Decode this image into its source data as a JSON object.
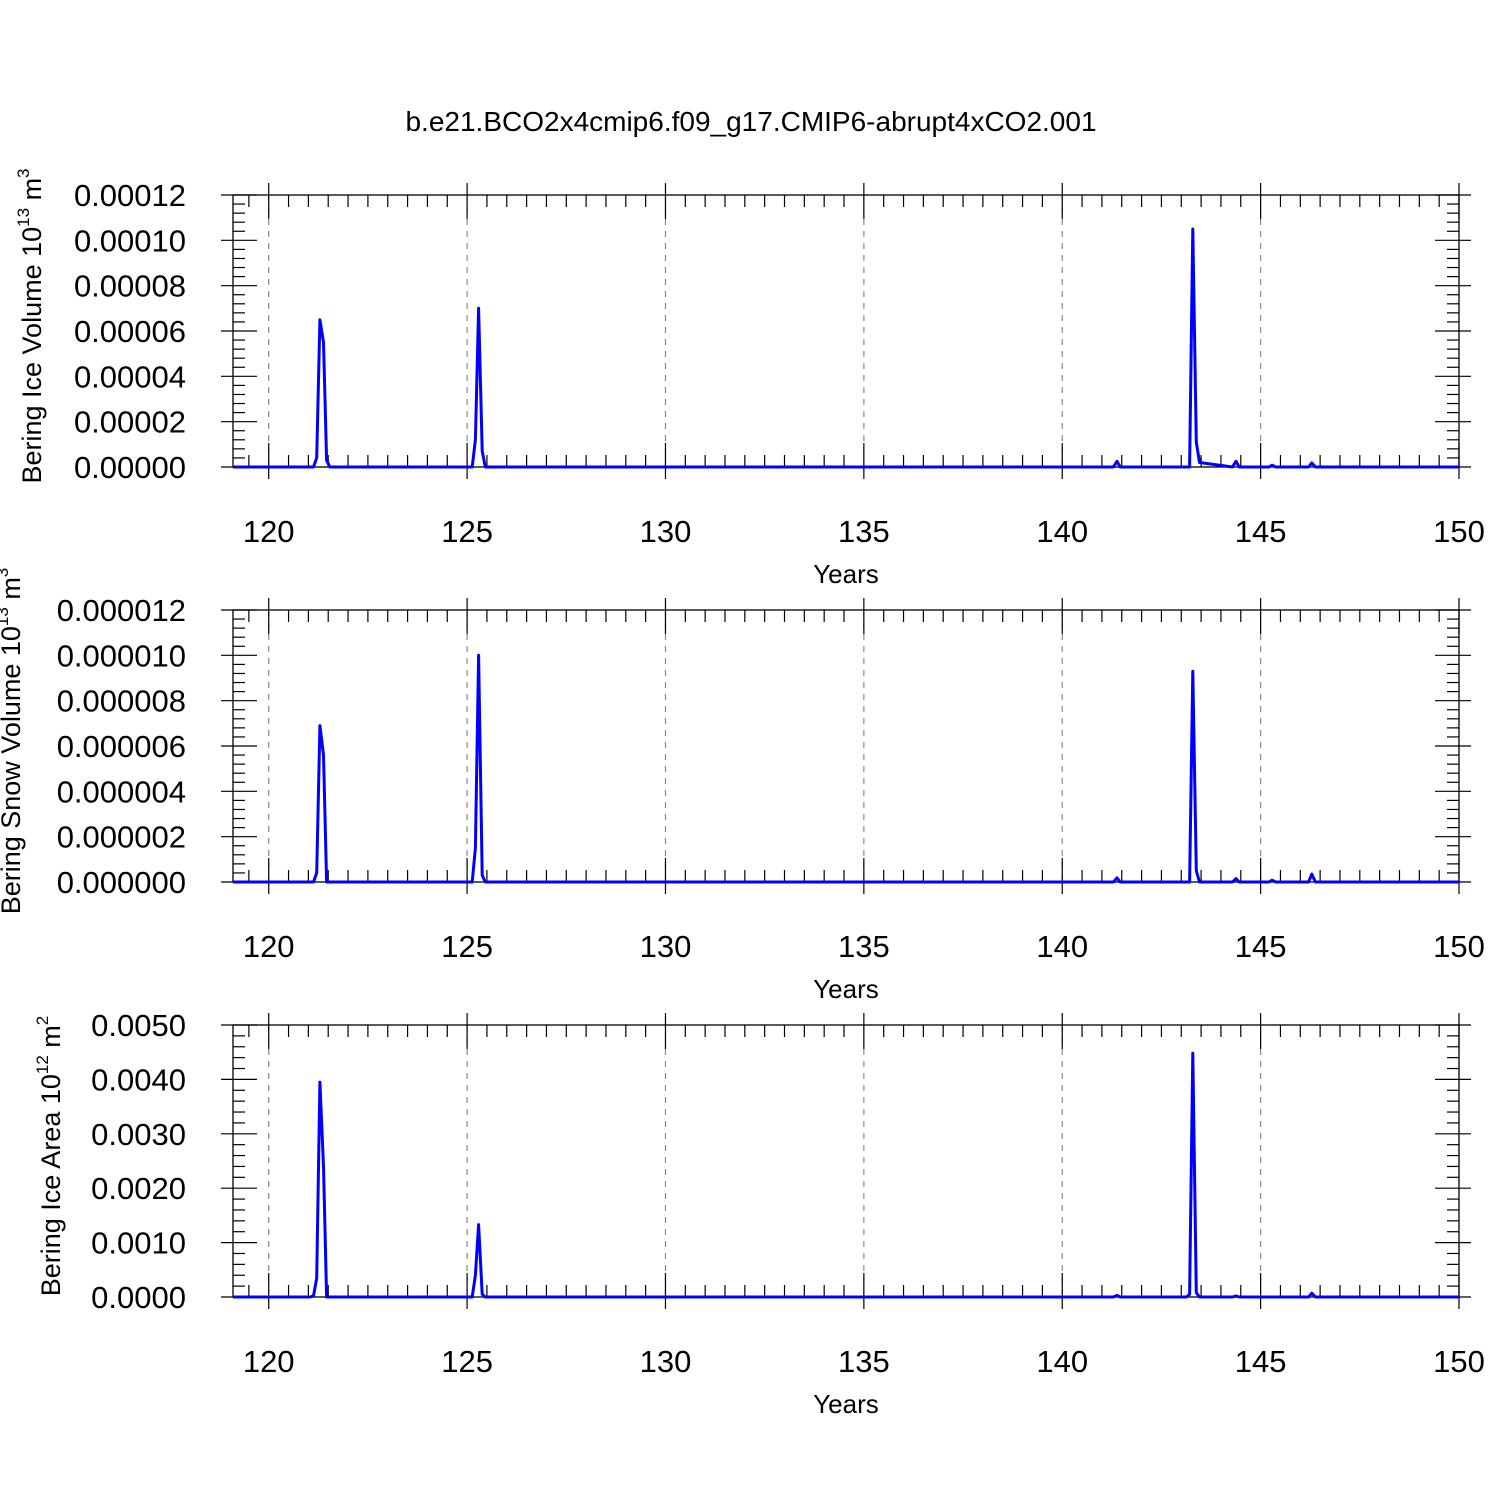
{
  "figure": {
    "title": "b.e21.BCO2x4cmip6.f09_g17.CMIP6-abrupt4xCO2.001"
  },
  "chart_data": [
    {
      "type": "line",
      "ylabel_main": "Bering Ice Volume 10",
      "ylabel_exp": "13",
      "ylabel_unit": " m",
      "ylabel_unit_exp": "3",
      "xlabel": "Years",
      "xlim": [
        119.1,
        150
      ],
      "ylim": [
        0,
        0.00012
      ],
      "x_ticks": [
        120,
        125,
        130,
        135,
        140,
        145,
        150
      ],
      "x_tick_labels": [
        "120",
        "125",
        "130",
        "135",
        "140",
        "145",
        "150"
      ],
      "y_ticks": [
        0,
        2e-05,
        4e-05,
        6e-05,
        8e-05,
        0.0001,
        0.00012
      ],
      "y_tick_labels": [
        "0.00000",
        "0.00002",
        "0.00004",
        "0.00006",
        "0.00008",
        "0.00010",
        "0.00012"
      ],
      "grid": "vertical dashed",
      "series": [
        {
          "color": "#0000ff",
          "x": [
            119.1,
            121.13,
            121.21,
            121.29,
            121.38,
            121.46,
            121.54,
            125.13,
            125.21,
            125.29,
            125.38,
            125.46,
            141.29,
            141.38,
            141.46,
            143.13,
            143.21,
            143.29,
            143.38,
            143.46,
            144.29,
            144.38,
            144.46,
            145.21,
            145.29,
            145.38,
            146.21,
            146.29,
            146.38,
            150
          ],
          "y": [
            0,
            0,
            4e-06,
            6.5e-05,
            5.5e-05,
            3e-06,
            0,
            0,
            1.2e-05,
            7e-05,
            7e-06,
            0,
            0,
            2.5e-06,
            0,
            0,
            0,
            0.000105,
            1.1e-05,
            2e-06,
            0,
            2.5e-06,
            0,
            0,
            8e-07,
            0,
            0,
            1.8e-06,
            0,
            0
          ]
        }
      ]
    },
    {
      "type": "line",
      "ylabel_main": "Bering Snow Volume 10",
      "ylabel_exp": "13",
      "ylabel_unit": " m",
      "ylabel_unit_exp": "3",
      "xlabel": "Years",
      "xlim": [
        119.1,
        150
      ],
      "ylim": [
        0,
        1.2e-05
      ],
      "x_ticks": [
        120,
        125,
        130,
        135,
        140,
        145,
        150
      ],
      "x_tick_labels": [
        "120",
        "125",
        "130",
        "135",
        "140",
        "145",
        "150"
      ],
      "y_ticks": [
        0,
        2e-06,
        4e-06,
        6e-06,
        8e-06,
        1e-05,
        1.2e-05
      ],
      "y_tick_labels": [
        "0.000000",
        "0.000002",
        "0.000004",
        "0.000006",
        "0.000008",
        "0.000010",
        "0.000012"
      ],
      "grid": "vertical dashed",
      "series": [
        {
          "color": "#0000ff",
          "x": [
            119.1,
            121.13,
            121.21,
            121.29,
            121.38,
            121.46,
            125.13,
            125.21,
            125.29,
            125.38,
            125.46,
            141.29,
            141.38,
            141.46,
            143.13,
            143.21,
            143.29,
            143.38,
            143.46,
            144.29,
            144.38,
            144.46,
            145.21,
            145.29,
            145.38,
            146.21,
            146.29,
            146.38,
            150
          ],
          "y": [
            0,
            0,
            4e-07,
            6.9e-06,
            5.6e-06,
            0,
            0,
            1.5e-06,
            1e-05,
            3e-07,
            0,
            0,
            1.8e-07,
            0,
            0,
            0,
            9.3e-06,
            5e-07,
            0,
            0,
            1.5e-07,
            0,
            0,
            8e-08,
            0,
            0,
            3.5e-07,
            0,
            0
          ]
        }
      ]
    },
    {
      "type": "line",
      "ylabel_main": "Bering Ice Area 10",
      "ylabel_exp": "12",
      "ylabel_unit": " m",
      "ylabel_unit_exp": "2",
      "xlabel": "Years",
      "xlim": [
        119.1,
        150
      ],
      "ylim": [
        0,
        0.005
      ],
      "x_ticks": [
        120,
        125,
        130,
        135,
        140,
        145,
        150
      ],
      "x_tick_labels": [
        "120",
        "125",
        "130",
        "135",
        "140",
        "145",
        "150"
      ],
      "y_ticks": [
        0,
        0.001,
        0.002,
        0.003,
        0.004,
        0.005
      ],
      "y_tick_labels": [
        "0.0000",
        "0.0010",
        "0.0020",
        "0.0030",
        "0.0040",
        "0.0050"
      ],
      "grid": "vertical dashed",
      "series": [
        {
          "color": "#0000ff",
          "x": [
            119.1,
            121.04,
            121.13,
            121.21,
            121.29,
            121.38,
            121.46,
            125.13,
            125.21,
            125.29,
            125.38,
            125.46,
            141.29,
            141.38,
            141.46,
            143.13,
            143.21,
            143.29,
            143.38,
            143.46,
            144.29,
            144.38,
            144.46,
            146.21,
            146.29,
            146.38,
            150
          ],
          "y": [
            0,
            0,
            2e-05,
            0.00035,
            0.00395,
            0.0024,
            0,
            0,
            0.0004,
            0.00133,
            5e-05,
            0,
            0,
            3e-05,
            0,
            0,
            5e-05,
            0.00448,
            8e-05,
            0,
            0,
            2e-05,
            0,
            0,
            7e-05,
            0,
            0
          ]
        }
      ]
    }
  ]
}
